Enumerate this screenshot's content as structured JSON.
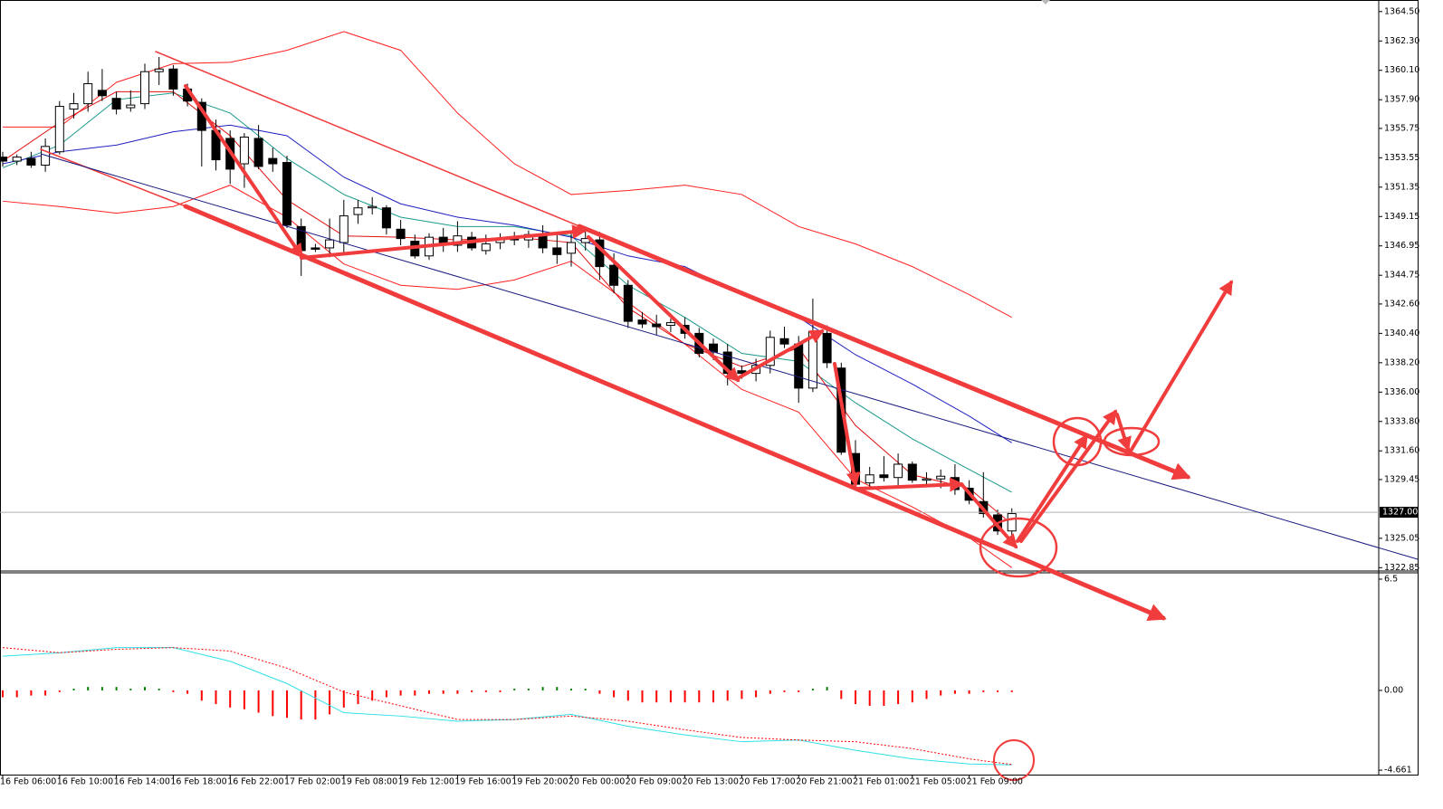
{
  "chart_data": [
    {
      "type": "candlestick",
      "categories": [
        "16 Feb 06:00",
        null,
        null,
        null,
        "16 Feb 10:00",
        null,
        null,
        null,
        "16 Feb 14:00",
        null,
        null,
        null,
        "16 Feb 18:00",
        null,
        null,
        null,
        "16 Feb 22:00",
        null,
        null,
        null,
        "17 Feb 02:00",
        null,
        null,
        null,
        "19 Feb 08:00",
        null,
        null,
        null,
        "19 Feb 12:00",
        null,
        null,
        null,
        "19 Feb 16:00",
        null,
        null,
        null,
        "19 Feb 20:00",
        null,
        null,
        null,
        "20 Feb 00:00",
        null,
        null,
        null,
        "20 Feb 09:00",
        null,
        null,
        null,
        "20 Feb 13:00",
        null,
        null,
        null,
        "20 Feb 17:00",
        null,
        null,
        null,
        "20 Feb 21:00",
        null,
        null,
        null,
        "21 Feb 01:00",
        null,
        null,
        null,
        "21 Feb 05:00",
        null,
        null,
        null,
        "21 Feb 09:00",
        null,
        null,
        null
      ],
      "open": [
        1353.6,
        1353.3,
        1353.5,
        1353.0,
        1354.0,
        1357.2,
        1357.6,
        1358.6,
        1358.0,
        1357.3,
        1357.6,
        1360.0,
        1360.2,
        1358.7,
        1357.7,
        1355.6,
        1355.0,
        1353.1,
        1355.0,
        1353.5,
        1353.2,
        1348.4,
        1346.8,
        1346.8,
        1347.2,
        1349.3,
        1349.8,
        1349.8,
        1348.2,
        1347.3,
        1346.2,
        1347.6,
        1347.0,
        1347.6,
        1346.6,
        1347.2,
        1347.5,
        1347.4,
        1347.8,
        1346.8,
        1346.4,
        1347.2,
        1347.4,
        1345.5,
        1344.0,
        1341.4,
        1341.1,
        1341.0,
        1341.0,
        1340.4,
        1339.6,
        1339.0,
        1337.6,
        1337.4,
        1338.0,
        1340.0,
        1339.6,
        1336.3,
        1340.4,
        1337.8,
        1331.4,
        1329.2,
        1329.8,
        1329.6,
        1330.6,
        1329.4,
        1329.5,
        1329.6,
        1328.8,
        1327.8,
        1326.8,
        1325.6
      ],
      "high": [
        1354.0,
        1353.8,
        1354.0,
        1355.0,
        1357.8,
        1358.4,
        1360.0,
        1360.2,
        1358.5,
        1358.6,
        1360.6,
        1361.1,
        1360.5,
        1359.1,
        1358.0,
        1356.4,
        1355.6,
        1355.4,
        1356.0,
        1354.3,
        1353.7,
        1349.0,
        1347.1,
        1349.0,
        1350.4,
        1350.4,
        1350.6,
        1350.0,
        1348.9,
        1347.8,
        1347.9,
        1348.3,
        1348.8,
        1348.0,
        1347.8,
        1347.9,
        1348.0,
        1348.1,
        1348.5,
        1347.8,
        1348.0,
        1348.3,
        1348.0,
        1346.4,
        1344.4,
        1342.0,
        1341.8,
        1341.5,
        1341.6,
        1340.8,
        1340.0,
        1339.6,
        1338.0,
        1338.5,
        1340.6,
        1340.9,
        1340.2,
        1343.0,
        1341.0,
        1338.2,
        1332.4,
        1330.4,
        1331.2,
        1331.4,
        1330.8,
        1330.0,
        1330.2,
        1330.6,
        1329.4,
        1330.0,
        1327.2,
        1327.3
      ],
      "low": [
        1352.9,
        1353.0,
        1352.8,
        1352.5,
        1353.8,
        1356.5,
        1357.0,
        1357.8,
        1356.8,
        1357.0,
        1357.2,
        1359.0,
        1358.2,
        1357.4,
        1352.9,
        1352.6,
        1351.6,
        1351.3,
        1352.7,
        1352.5,
        1348.3,
        1344.7,
        1346.5,
        1346.1,
        1346.4,
        1348.6,
        1349.3,
        1347.8,
        1347.0,
        1346.0,
        1345.9,
        1346.5,
        1346.5,
        1346.6,
        1346.3,
        1346.7,
        1347.0,
        1346.8,
        1346.4,
        1345.6,
        1345.4,
        1346.6,
        1344.4,
        1343.4,
        1340.8,
        1340.8,
        1340.3,
        1340.5,
        1340.0,
        1338.6,
        1338.4,
        1336.5,
        1337.0,
        1336.8,
        1337.4,
        1339.3,
        1335.2,
        1336.0,
        1337.8,
        1331.3,
        1328.7,
        1328.8,
        1329.3,
        1328.9,
        1329.2,
        1329.0,
        1328.8,
        1328.3,
        1327.6,
        1326.6,
        1325.3,
        1325.3
      ],
      "close": [
        1353.3,
        1353.6,
        1353.0,
        1354.4,
        1357.4,
        1357.6,
        1359.1,
        1358.2,
        1357.2,
        1357.5,
        1360.0,
        1360.2,
        1358.7,
        1357.8,
        1355.6,
        1353.4,
        1352.7,
        1355.1,
        1352.9,
        1353.1,
        1348.5,
        1346.6,
        1346.7,
        1347.4,
        1349.2,
        1349.8,
        1349.9,
        1348.3,
        1347.5,
        1346.2,
        1347.6,
        1347.2,
        1347.7,
        1346.8,
        1347.1,
        1347.5,
        1347.4,
        1347.8,
        1346.8,
        1346.3,
        1347.2,
        1347.5,
        1345.4,
        1344.0,
        1341.3,
        1341.1,
        1340.9,
        1341.2,
        1340.4,
        1338.9,
        1339.0,
        1337.4,
        1337.4,
        1338.0,
        1340.1,
        1339.6,
        1336.3,
        1340.5,
        1338.2,
        1331.5,
        1329.1,
        1329.8,
        1329.6,
        1330.6,
        1329.4,
        1329.5,
        1329.7,
        1328.7,
        1327.9,
        1326.9,
        1325.6,
        1326.9
      ],
      "overlays": [
        {
          "color": "#ff2020",
          "x": [
            0,
            4,
            8,
            12,
            16,
            20,
            24,
            28,
            32,
            36,
            40,
            44,
            48,
            52,
            56,
            60,
            64,
            68,
            71
          ],
          "values": [
            1355.85,
            1355.85,
            1359.2,
            1360.6,
            1360.7,
            1361.6,
            1363.0,
            1361.6,
            1356.9,
            1353.1,
            1350.8,
            1351.1,
            1351.5,
            1350.8,
            1348.4,
            1347.1,
            1345.4,
            1343.3,
            1341.6
          ]
        },
        {
          "color": "#ff2020",
          "x": [
            0,
            4,
            8,
            12,
            16,
            20,
            24,
            28,
            32,
            36,
            40,
            44,
            48,
            52,
            56,
            60,
            64,
            68,
            71
          ],
          "values": [
            1350.3,
            1349.9,
            1349.4,
            1349.9,
            1351.5,
            1349.1,
            1345.6,
            1344.0,
            1343.7,
            1344.4,
            1345.8,
            1342.7,
            1339.6,
            1336.2,
            1334.5,
            1329.5,
            1327.4,
            1325.1,
            1322.85
          ]
        },
        {
          "color": "#1a9a8a",
          "x": [
            0,
            4,
            8,
            12,
            16,
            20,
            24,
            28,
            32,
            36,
            40,
            44,
            48,
            52,
            56,
            60,
            64,
            68,
            71
          ],
          "values": [
            1352.8,
            1354.5,
            1357.9,
            1358.4,
            1356.9,
            1353.5,
            1350.8,
            1349.1,
            1348.4,
            1348.4,
            1347.7,
            1344.0,
            1341.6,
            1338.9,
            1338.3,
            1335.2,
            1332.5,
            1330.2,
            1328.5
          ]
        },
        {
          "color": "#2020c0",
          "x": [
            0,
            4,
            8,
            12,
            16,
            20,
            24,
            28,
            32,
            36,
            40,
            44,
            48,
            52,
            56,
            60,
            64,
            68,
            71
          ],
          "values": [
            1353.1,
            1354.0,
            1354.5,
            1355.5,
            1356.0,
            1355.2,
            1352.1,
            1350.1,
            1349.1,
            1348.5,
            1347.6,
            1346.2,
            1345.4,
            1343.3,
            1341.6,
            1338.8,
            1336.6,
            1334.2,
            1332.2
          ]
        },
        {
          "color": "#e01010",
          "x": [
            0,
            4,
            8,
            12,
            16,
            20,
            24,
            28,
            32,
            36,
            40,
            44,
            48,
            52,
            56,
            60,
            64,
            68,
            71
          ],
          "values": [
            1353.3,
            1356.2,
            1358.5,
            1358.5,
            1355.2,
            1350.4,
            1347.7,
            1347.6,
            1347.4,
            1347.6,
            1347.2,
            1342.3,
            1339.6,
            1337.9,
            1339.3,
            1333.5,
            1329.8,
            1328.8,
            1326.1
          ]
        }
      ],
      "last_price": {
        "value": 1327,
        "label": "1327.00"
      },
      "ylim": [
        1322.6,
        1365.3
      ],
      "yticks": [
        {
          "value": 1364.5,
          "label": "1364.50"
        },
        {
          "value": 1362.3,
          "label": "1362.30"
        },
        {
          "value": 1360.1,
          "label": "1360.10"
        },
        {
          "value": 1357.9,
          "label": "1357.90"
        },
        {
          "value": 1355.75,
          "label": "1355.75"
        },
        {
          "value": 1353.55,
          "label": "1353.55"
        },
        {
          "value": 1351.35,
          "label": "1351.35"
        },
        {
          "value": 1349.15,
          "label": "1349.15"
        },
        {
          "value": 1346.95,
          "label": "1346.95"
        },
        {
          "value": 1344.75,
          "label": "1344.75"
        },
        {
          "value": 1342.6,
          "label": "1342.60"
        },
        {
          "value": 1340.4,
          "label": "1340.40"
        },
        {
          "value": 1338.2,
          "label": "1338.20"
        },
        {
          "value": 1336,
          "label": "1336.00"
        },
        {
          "value": 1333.8,
          "label": "1333.80"
        },
        {
          "value": 1331.6,
          "label": "1331.60"
        },
        {
          "value": 1329.45,
          "label": "1329.45"
        },
        {
          "value": 1325.05,
          "label": "1325.05"
        },
        {
          "value": 1322.85,
          "label": "1322.85"
        }
      ],
      "grid": false
    },
    {
      "type": "macd",
      "values": [
        -0.4,
        -0.4,
        -0.3,
        -0.3,
        -0.1,
        0.1,
        0.2,
        0.2,
        0.2,
        0.1,
        0.2,
        0.1,
        -0.1,
        -0.2,
        -0.6,
        -0.8,
        -1.0,
        -1.1,
        -1.3,
        -1.5,
        -1.6,
        -1.7,
        -1.7,
        -1.4,
        -1.0,
        -0.8,
        -0.6,
        -0.4,
        -0.3,
        -0.3,
        -0.2,
        -0.2,
        -0.2,
        -0.1,
        -0.1,
        -0.1,
        0.1,
        0.1,
        0.2,
        0.2,
        0.1,
        0.1,
        -0.2,
        -0.4,
        -0.6,
        -0.7,
        -0.7,
        -0.7,
        -0.7,
        -0.7,
        -0.7,
        -0.6,
        -0.5,
        -0.4,
        -0.2,
        -0.1,
        -0.1,
        0.1,
        0.2,
        -0.5,
        -0.8,
        -0.9,
        -0.9,
        -0.8,
        -0.7,
        -0.5,
        -0.3,
        -0.2,
        -0.2,
        -0.1,
        -0.1,
        -0.1
      ],
      "up_color": "#008000",
      "down_color": "#ff0000",
      "series": [
        {
          "color": "#30e0e8",
          "style": "solid",
          "x": [
            0,
            4,
            8,
            12,
            16,
            20,
            24,
            28,
            32,
            36,
            40,
            44,
            48,
            52,
            56,
            60,
            64,
            68,
            71
          ],
          "values": [
            2.0,
            2.2,
            2.5,
            2.5,
            1.7,
            0.4,
            -1.3,
            -1.5,
            -1.8,
            -1.7,
            -1.4,
            -2.1,
            -2.6,
            -3.0,
            -2.9,
            -3.5,
            -4.0,
            -4.3,
            -4.35
          ]
        },
        {
          "color": "#ff0000",
          "style": "dotted",
          "x": [
            0,
            4,
            8,
            12,
            16,
            20,
            24,
            28,
            32,
            36,
            40,
            44,
            48,
            52,
            56,
            60,
            64,
            68,
            71
          ],
          "values": [
            2.5,
            2.2,
            2.4,
            2.5,
            2.3,
            1.3,
            -0.1,
            -0.9,
            -1.7,
            -1.7,
            -1.5,
            -1.8,
            -2.3,
            -2.75,
            -2.9,
            -3.0,
            -3.4,
            -4.0,
            -4.33
          ]
        }
      ],
      "ylim": [
        -4.92,
        6.87
      ],
      "yticks": [
        6.5,
        {
          "value": 0,
          "label": "0.00"
        },
        -4.661
      ]
    }
  ]
}
